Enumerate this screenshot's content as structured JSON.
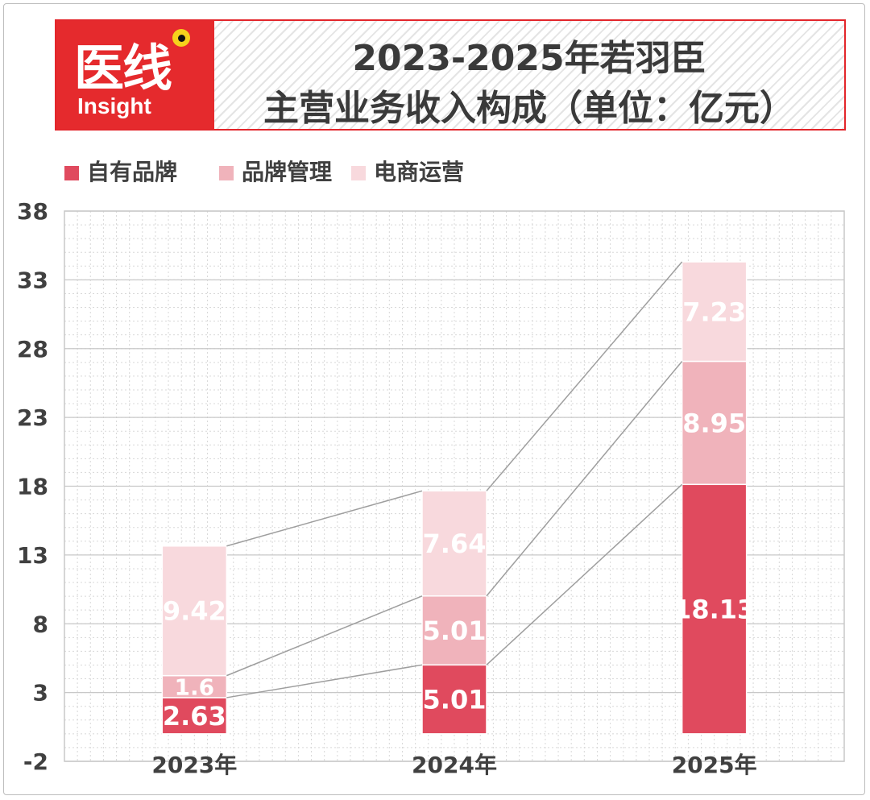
{
  "header": {
    "logo_text": "医线",
    "logo_sub": "Insight",
    "title_line1": "2023-2025年若羽臣",
    "title_line2": "主营业务收入构成（单位：亿元）"
  },
  "colors": {
    "brand_red": "#e52a2d",
    "series_1": "#e04a5e",
    "series_2": "#f0b3bb",
    "series_3": "#f8d9dd"
  },
  "chart_data": {
    "type": "bar",
    "stacked": true,
    "categories": [
      "2023年",
      "2024年",
      "2025年"
    ],
    "series": [
      {
        "name": "自有品牌",
        "values": [
          2.63,
          5.01,
          18.13
        ],
        "labels": [
          "2.63",
          "5.01",
          "18.13"
        ]
      },
      {
        "name": "品牌管理",
        "values": [
          1.6,
          5.01,
          8.95
        ],
        "labels": [
          "1.6",
          "5.01",
          "8.95"
        ]
      },
      {
        "name": "电商运营",
        "values": [
          9.42,
          7.64,
          7.23
        ],
        "labels": [
          "9.42",
          "7.64",
          "7.23"
        ]
      }
    ],
    "yticks": [
      "-2",
      "3",
      "8",
      "13",
      "18",
      "23",
      "28",
      "33",
      "38"
    ],
    "ylim": [
      -2,
      38
    ],
    "grid": true,
    "legend_position": "top-left",
    "connector_lines": true
  }
}
